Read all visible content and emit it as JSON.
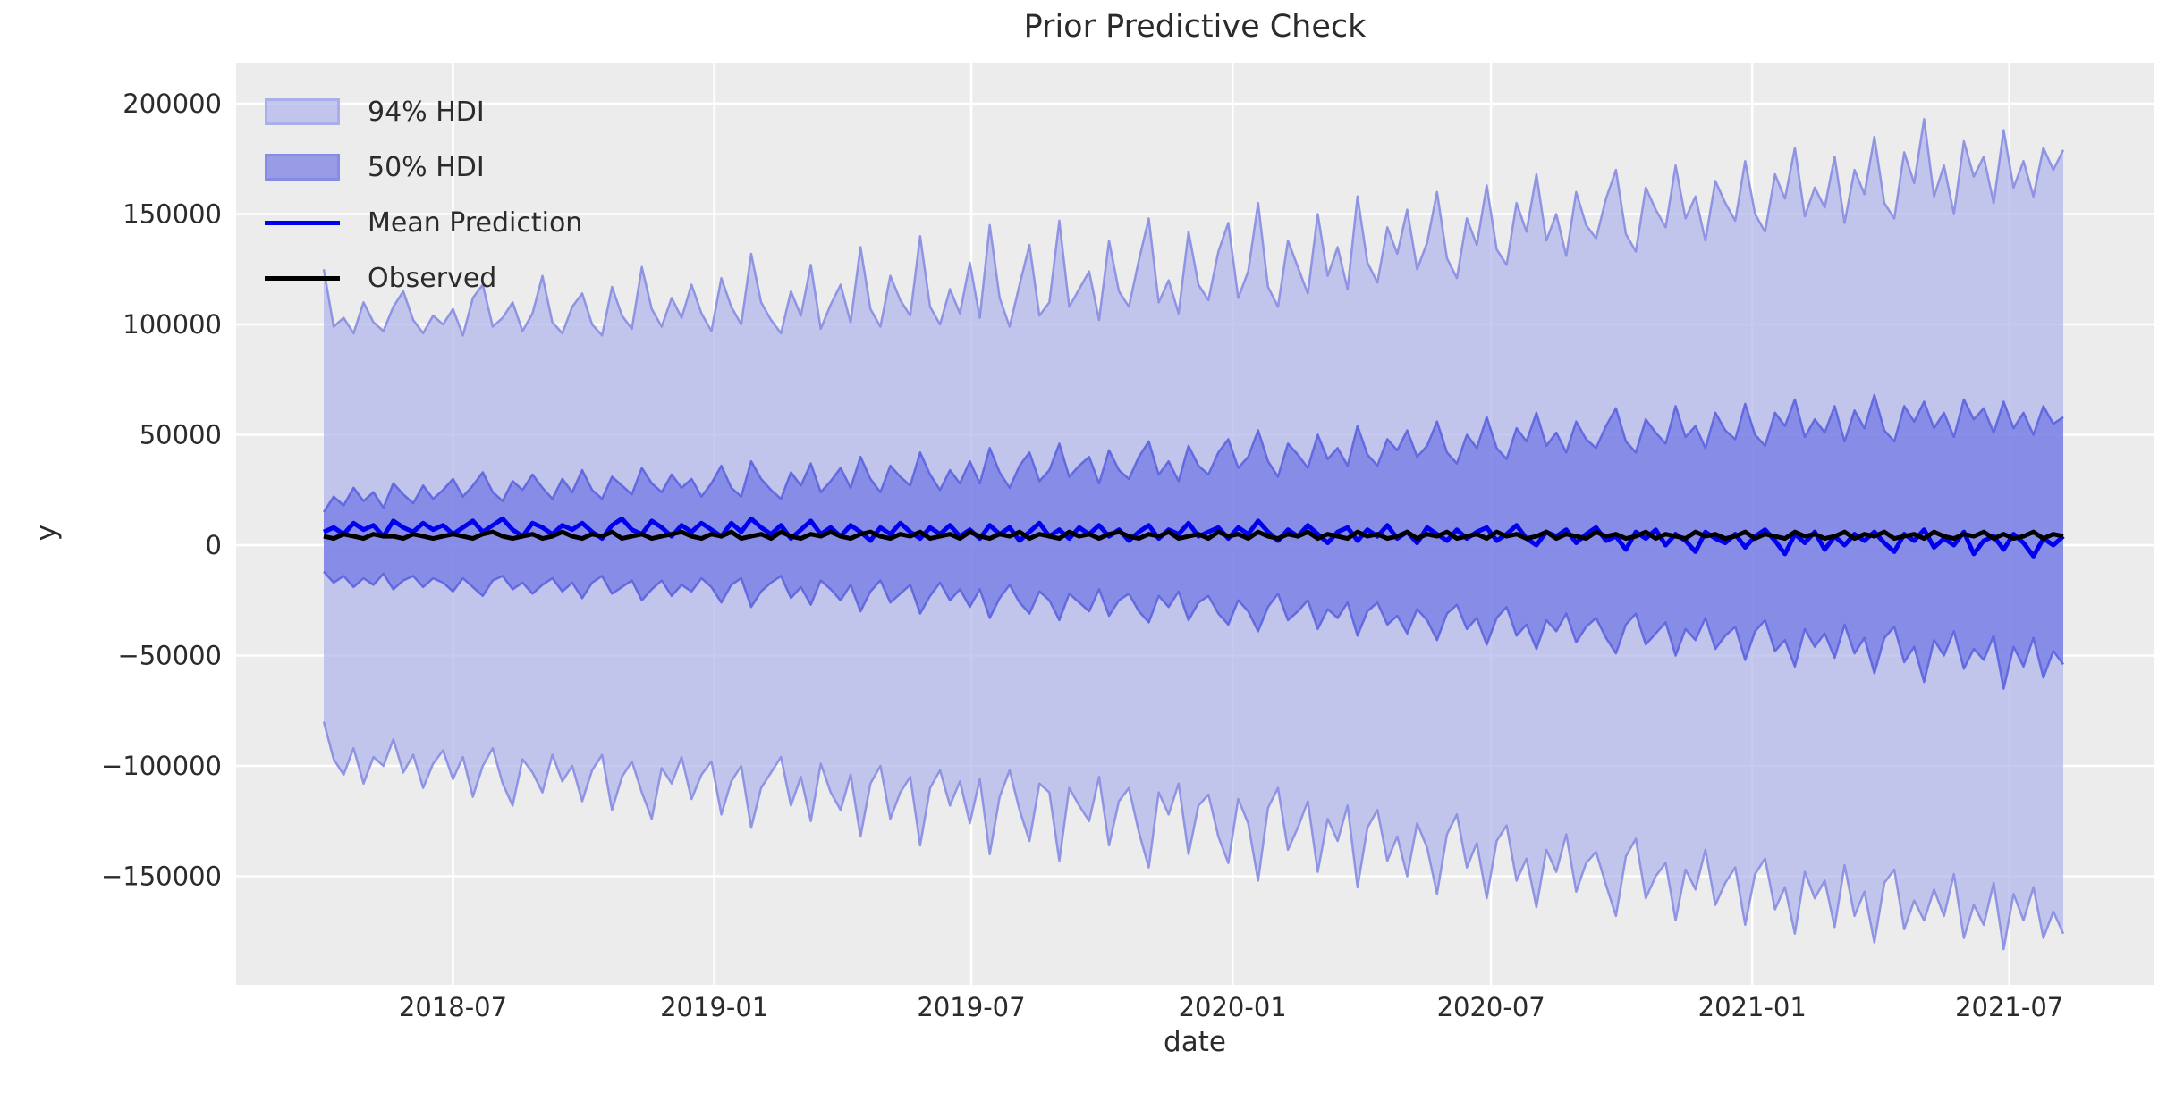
{
  "chart_data": {
    "type": "line",
    "title": "Prior Predictive Check",
    "xlabel": "date",
    "ylabel": "y",
    "grid": true,
    "legend_position": "upper left",
    "background": "plot area light gray with white gridlines",
    "ylim": [
      -200000,
      218000
    ],
    "x_start": "2018-04-01",
    "x_step_days": 7,
    "n_points": 176,
    "unit": 1000,
    "y_ticks": [
      {
        "value": 200000,
        "label": "200000"
      },
      {
        "value": 150000,
        "label": "150000"
      },
      {
        "value": 100000,
        "label": "100000"
      },
      {
        "value": 50000,
        "label": "50000"
      },
      {
        "value": 0,
        "label": "0"
      },
      {
        "value": -50000,
        "label": "−50000"
      },
      {
        "value": -100000,
        "label": "−100000"
      },
      {
        "value": -150000,
        "label": "−150000"
      }
    ],
    "x_ticks": [
      {
        "week": 13.0,
        "label": "2018-07"
      },
      {
        "week": 39.29,
        "label": "2019-01"
      },
      {
        "week": 65.14,
        "label": "2019-07"
      },
      {
        "week": 91.43,
        "label": "2020-01"
      },
      {
        "week": 117.43,
        "label": "2020-07"
      },
      {
        "week": 143.71,
        "label": "2021-01"
      },
      {
        "week": 169.57,
        "label": "2021-07"
      }
    ],
    "bands": [
      {
        "name": "94% HDI",
        "upper": [
          125,
          99,
          103,
          96,
          110,
          101,
          97,
          108,
          115,
          102,
          96,
          104,
          100,
          107,
          95,
          112,
          118,
          99,
          103,
          110,
          97,
          105,
          122,
          101,
          96,
          108,
          114,
          100,
          95,
          117,
          104,
          98,
          126,
          107,
          99,
          112,
          103,
          118,
          105,
          97,
          121,
          108,
          100,
          132,
          110,
          102,
          96,
          115,
          104,
          127,
          98,
          109,
          118,
          101,
          135,
          107,
          99,
          122,
          111,
          104,
          140,
          108,
          100,
          116,
          105,
          128,
          103,
          145,
          112,
          99,
          118,
          136,
          104,
          110,
          147,
          108,
          116,
          124,
          102,
          138,
          115,
          108,
          129,
          148,
          110,
          120,
          105,
          142,
          118,
          111,
          133,
          146,
          112,
          124,
          155,
          117,
          108,
          138,
          126,
          114,
          150,
          122,
          135,
          116,
          158,
          128,
          119,
          144,
          132,
          152,
          125,
          137,
          160,
          130,
          121,
          148,
          136,
          163,
          134,
          127,
          155,
          142,
          168,
          138,
          150,
          131,
          160,
          145,
          139,
          157,
          170,
          141,
          133,
          162,
          152,
          144,
          172,
          148,
          158,
          138,
          165,
          155,
          147,
          174,
          150,
          142,
          168,
          157,
          180,
          149,
          162,
          153,
          176,
          146,
          170,
          159,
          185,
          155,
          148,
          178,
          164,
          193,
          158,
          172,
          150,
          183,
          167,
          176,
          155,
          188,
          162,
          174,
          158,
          180,
          170,
          179
        ],
        "lower": [
          -80,
          -97,
          -104,
          -92,
          -108,
          -96,
          -100,
          -88,
          -103,
          -95,
          -110,
          -99,
          -93,
          -106,
          -96,
          -114,
          -100,
          -92,
          -108,
          -118,
          -97,
          -103,
          -112,
          -95,
          -107,
          -100,
          -116,
          -102,
          -95,
          -120,
          -105,
          -98,
          -112,
          -124,
          -101,
          -108,
          -96,
          -115,
          -104,
          -98,
          -122,
          -107,
          -100,
          -128,
          -110,
          -103,
          -96,
          -118,
          -105,
          -125,
          -99,
          -112,
          -120,
          -104,
          -132,
          -108,
          -100,
          -124,
          -112,
          -105,
          -136,
          -110,
          -102,
          -118,
          -107,
          -126,
          -106,
          -140,
          -114,
          -102,
          -120,
          -134,
          -108,
          -112,
          -143,
          -110,
          -118,
          -125,
          -105,
          -136,
          -116,
          -110,
          -130,
          -146,
          -112,
          -122,
          -108,
          -140,
          -118,
          -113,
          -132,
          -144,
          -115,
          -126,
          -152,
          -119,
          -110,
          -138,
          -128,
          -116,
          -148,
          -124,
          -134,
          -118,
          -155,
          -128,
          -120,
          -143,
          -132,
          -150,
          -126,
          -137,
          -158,
          -131,
          -122,
          -146,
          -135,
          -160,
          -134,
          -127,
          -152,
          -142,
          -164,
          -138,
          -148,
          -131,
          -157,
          -144,
          -139,
          -154,
          -168,
          -141,
          -133,
          -160,
          -150,
          -144,
          -170,
          -147,
          -156,
          -138,
          -163,
          -153,
          -146,
          -172,
          -149,
          -142,
          -165,
          -155,
          -176,
          -148,
          -160,
          -152,
          -173,
          -145,
          -168,
          -157,
          -180,
          -153,
          -147,
          -174,
          -161,
          -170,
          -156,
          -168,
          -149,
          -178,
          -163,
          -172,
          -153,
          -183,
          -158,
          -170,
          -155,
          -178,
          -166,
          -176
        ]
      },
      {
        "name": "50% HDI",
        "upper": [
          15,
          22,
          18,
          26,
          20,
          24,
          17,
          28,
          23,
          19,
          27,
          21,
          25,
          30,
          22,
          27,
          33,
          24,
          20,
          29,
          25,
          32,
          26,
          21,
          30,
          24,
          34,
          25,
          21,
          31,
          27,
          23,
          35,
          28,
          24,
          32,
          26,
          30,
          22,
          28,
          36,
          26,
          22,
          38,
          30,
          25,
          21,
          33,
          27,
          37,
          24,
          29,
          35,
          26,
          40,
          30,
          24,
          36,
          31,
          27,
          42,
          32,
          25,
          34,
          28,
          38,
          28,
          44,
          33,
          26,
          36,
          42,
          29,
          34,
          46,
          31,
          36,
          40,
          28,
          43,
          34,
          30,
          40,
          47,
          32,
          38,
          29,
          45,
          36,
          32,
          42,
          48,
          35,
          40,
          52,
          38,
          31,
          46,
          41,
          35,
          50,
          39,
          44,
          36,
          54,
          41,
          36,
          48,
          43,
          52,
          40,
          45,
          56,
          42,
          37,
          50,
          44,
          58,
          44,
          39,
          53,
          47,
          60,
          45,
          51,
          42,
          56,
          48,
          44,
          54,
          62,
          47,
          42,
          57,
          51,
          46,
          63,
          49,
          54,
          44,
          60,
          52,
          48,
          64,
          50,
          45,
          60,
          54,
          66,
          49,
          57,
          51,
          63,
          47,
          61,
          53,
          68,
          52,
          47,
          63,
          56,
          65,
          53,
          60,
          49,
          66,
          57,
          62,
          51,
          65,
          53,
          60,
          50,
          63,
          55,
          58
        ],
        "lower": [
          -12,
          -17,
          -14,
          -19,
          -15,
          -18,
          -13,
          -20,
          -16,
          -14,
          -19,
          -15,
          -17,
          -21,
          -15,
          -19,
          -23,
          -16,
          -14,
          -20,
          -17,
          -22,
          -18,
          -15,
          -21,
          -17,
          -24,
          -17,
          -14,
          -22,
          -19,
          -16,
          -25,
          -20,
          -16,
          -23,
          -18,
          -21,
          -15,
          -19,
          -26,
          -18,
          -15,
          -28,
          -21,
          -17,
          -14,
          -24,
          -19,
          -27,
          -16,
          -20,
          -25,
          -18,
          -30,
          -21,
          -16,
          -26,
          -22,
          -18,
          -31,
          -23,
          -17,
          -25,
          -20,
          -28,
          -20,
          -33,
          -24,
          -18,
          -26,
          -31,
          -21,
          -25,
          -34,
          -22,
          -26,
          -30,
          -20,
          -32,
          -25,
          -22,
          -30,
          -35,
          -23,
          -28,
          -21,
          -34,
          -26,
          -23,
          -31,
          -36,
          -25,
          -30,
          -39,
          -28,
          -22,
          -34,
          -30,
          -25,
          -38,
          -29,
          -33,
          -26,
          -41,
          -30,
          -26,
          -36,
          -32,
          -40,
          -29,
          -34,
          -43,
          -31,
          -27,
          -38,
          -33,
          -45,
          -33,
          -28,
          -41,
          -36,
          -47,
          -34,
          -39,
          -31,
          -44,
          -37,
          -33,
          -42,
          -49,
          -36,
          -31,
          -45,
          -40,
          -35,
          -50,
          -38,
          -43,
          -33,
          -47,
          -41,
          -37,
          -52,
          -39,
          -34,
          -48,
          -43,
          -55,
          -38,
          -46,
          -40,
          -51,
          -36,
          -49,
          -42,
          -58,
          -42,
          -37,
          -53,
          -46,
          -62,
          -43,
          -50,
          -39,
          -56,
          -47,
          -52,
          -41,
          -65,
          -46,
          -55,
          -42,
          -60,
          -48,
          -54
        ]
      }
    ],
    "lines": [
      {
        "name": "Mean Prediction",
        "values": [
          6,
          8,
          5,
          10,
          7,
          9,
          4,
          11,
          8,
          6,
          10,
          7,
          9,
          5,
          8,
          11,
          6,
          9,
          12,
          7,
          4,
          10,
          8,
          5,
          9,
          7,
          10,
          6,
          3,
          9,
          12,
          7,
          5,
          11,
          8,
          4,
          9,
          6,
          10,
          7,
          4,
          10,
          6,
          12,
          8,
          5,
          9,
          3,
          7,
          11,
          5,
          8,
          4,
          9,
          6,
          2,
          8,
          5,
          10,
          6,
          3,
          8,
          5,
          9,
          4,
          7,
          3,
          9,
          5,
          8,
          2,
          6,
          10,
          4,
          7,
          3,
          8,
          5,
          9,
          4,
          7,
          2,
          6,
          9,
          3,
          7,
          5,
          10,
          4,
          6,
          8,
          3,
          8,
          5,
          11,
          6,
          2,
          7,
          4,
          9,
          5,
          1,
          6,
          8,
          2,
          7,
          4,
          9,
          3,
          6,
          1,
          8,
          5,
          2,
          7,
          3,
          6,
          8,
          2,
          5,
          9,
          3,
          0,
          6,
          4,
          7,
          1,
          5,
          8,
          2,
          4,
          -2,
          6,
          3,
          7,
          0,
          5,
          2,
          -3,
          6,
          3,
          1,
          5,
          -1,
          4,
          7,
          2,
          -4,
          5,
          1,
          6,
          -2,
          4,
          0,
          5,
          2,
          6,
          1,
          -3,
          5,
          2,
          7,
          -1,
          3,
          0,
          6,
          -4,
          2,
          4,
          -2,
          5,
          1,
          -5,
          3,
          0,
          4
        ]
      },
      {
        "name": "Observed",
        "values": [
          4,
          3,
          5,
          4,
          3,
          5,
          4,
          4,
          3,
          5,
          4,
          3,
          4,
          5,
          4,
          3,
          5,
          6,
          4,
          3,
          4,
          5,
          3,
          4,
          6,
          4,
          3,
          5,
          4,
          6,
          3,
          4,
          5,
          3,
          4,
          5,
          6,
          4,
          3,
          5,
          4,
          6,
          3,
          4,
          5,
          3,
          6,
          4,
          3,
          5,
          4,
          6,
          4,
          3,
          5,
          6,
          4,
          3,
          5,
          4,
          6,
          3,
          4,
          5,
          3,
          6,
          4,
          3,
          5,
          4,
          6,
          3,
          5,
          4,
          3,
          6,
          4,
          5,
          3,
          5,
          6,
          4,
          3,
          5,
          4,
          6,
          3,
          4,
          5,
          3,
          6,
          4,
          5,
          3,
          6,
          4,
          3,
          5,
          4,
          6,
          3,
          5,
          4,
          3,
          6,
          4,
          5,
          3,
          4,
          6,
          3,
          5,
          4,
          6,
          3,
          4,
          5,
          3,
          6,
          4,
          5,
          3,
          4,
          6,
          3,
          5,
          4,
          3,
          6,
          4,
          5,
          3,
          4,
          6,
          3,
          5,
          4,
          3,
          6,
          4,
          5,
          3,
          4,
          6,
          3,
          5,
          4,
          3,
          6,
          4,
          5,
          3,
          4,
          6,
          3,
          5,
          4,
          6,
          3,
          4,
          5,
          3,
          6,
          4,
          3,
          5,
          4,
          6,
          3,
          5,
          3,
          4,
          6,
          3,
          5,
          4
        ]
      }
    ]
  },
  "colors": {
    "plot_background": "#ececec",
    "gridline": "#ffffff",
    "hdi94_fill": "rgba(176,180,234,0.72)",
    "hdi94_edge": "rgba(130,136,226,0.85)",
    "hdi50_fill": "rgba(100,106,228,0.62)",
    "hdi50_edge": "rgba(88,95,222,0.85)",
    "mean_line": "#0000ee",
    "observed_line": "#000000",
    "text": "#2b2b2b"
  }
}
